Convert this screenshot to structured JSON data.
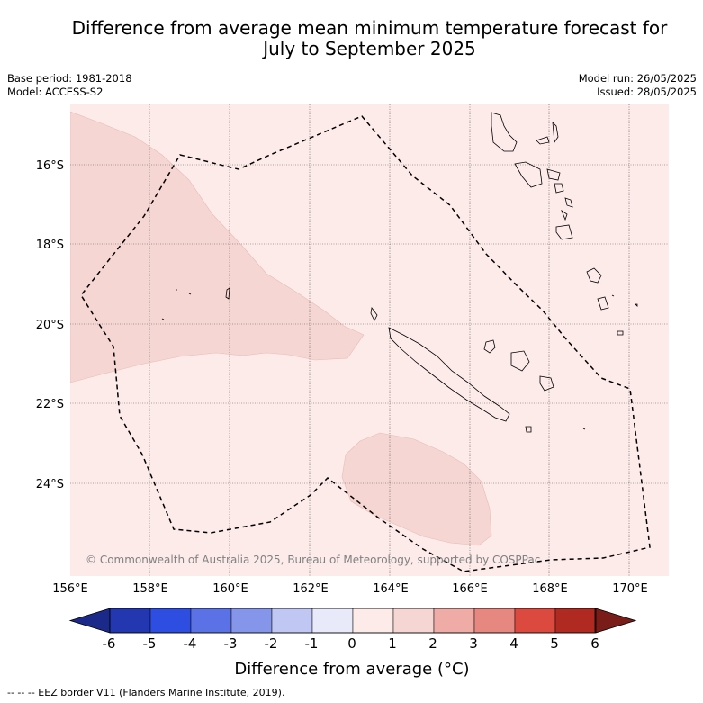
{
  "title": {
    "line1": "Difference from average mean minimum temperature forecast for",
    "line2": "July to September 2025"
  },
  "meta": {
    "base_period": "Base period: 1981-2018",
    "model": "Model: ACCESS-S2",
    "model_run": "Model run: 26/05/2025",
    "issued": "Issued: 28/05/2025"
  },
  "map": {
    "lat_labels": [
      "16°S",
      "18°S",
      "20°S",
      "22°S",
      "24°S"
    ],
    "lon_labels": [
      "156°E",
      "158°E",
      "160°E",
      "162°E",
      "164°E",
      "166°E",
      "168°E",
      "170°E"
    ],
    "copyright": "© Commonwealth of Australia 2025, Bureau of Meteorology, supported by COSPPac",
    "background_color": "#fcebe9",
    "anomaly_1_2_color": "#f5d6d3"
  },
  "colorbar": {
    "tick_labels": [
      "-6",
      "-5",
      "-4",
      "-3",
      "-2",
      "-1",
      "0",
      "1",
      "2",
      "3",
      "4",
      "5",
      "6"
    ],
    "colors": [
      "#1b2a8a",
      "#2338b0",
      "#2d4ee0",
      "#5a72e6",
      "#8596ea",
      "#c0c7f3",
      "#e8eafa",
      "#fcebe9",
      "#f5d6d3",
      "#efaca7",
      "#e78880",
      "#dc4a3f",
      "#b02a22",
      "#7a1c17"
    ],
    "label": "Difference from average (°C)"
  },
  "footer": {
    "legend": "-- -- -- EEZ border V11 (Flanders Marine Institute, 2019)."
  }
}
